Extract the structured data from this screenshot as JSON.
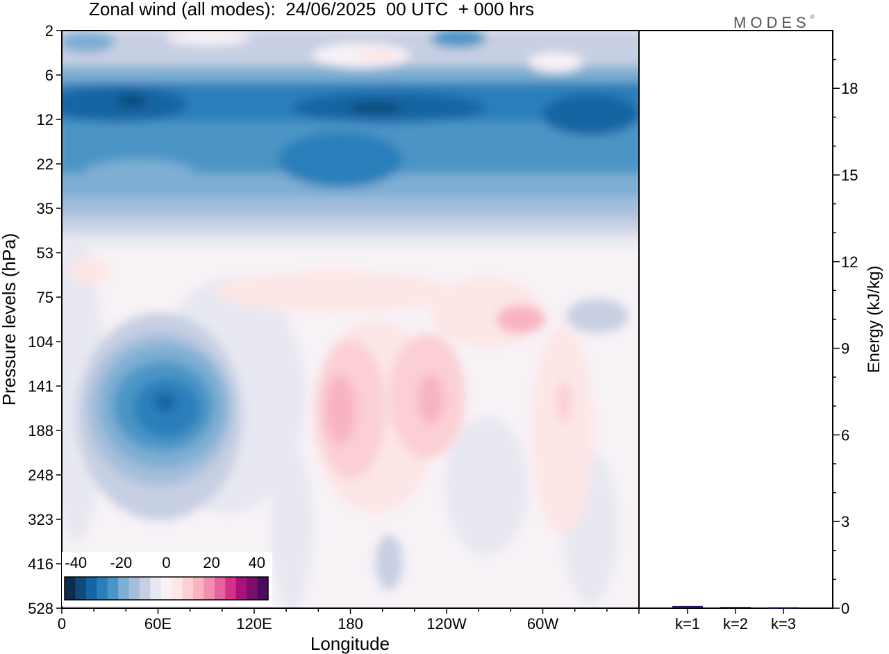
{
  "header": {
    "title": "Zonal wind (all modes):  24/06/2025  00 UTC  + 000 hrs",
    "brand": "MODES",
    "brand_mark": "®"
  },
  "chart_data": [
    {
      "type": "heatmap",
      "title": "Zonal wind (all modes):  24/06/2025  00 UTC  + 000 hrs",
      "xlabel": "Longitude",
      "ylabel": "Pressure levels (hPa)",
      "x_ticks": [
        "0",
        "60E",
        "120E",
        "180",
        "120W",
        "60W"
      ],
      "y_ticks": [
        "2",
        "6",
        "12",
        "22",
        "35",
        "53",
        "75",
        "104",
        "141",
        "188",
        "248",
        "323",
        "416",
        "528"
      ],
      "colorbar": {
        "ticks": [
          "-40",
          "-20",
          "0",
          "20",
          "40"
        ],
        "range": [
          -45,
          45
        ],
        "step": 5,
        "colors": [
          "#0d2d4f",
          "#104a78",
          "#1565a3",
          "#2a7fba",
          "#4b95c6",
          "#7eaed3",
          "#a4bedb",
          "#c7cfe3",
          "#e7e8f1",
          "#f7f2f6",
          "#fde6e6",
          "#fbcfd3",
          "#f8b3c0",
          "#f28fb0",
          "#e8629e",
          "#d43188",
          "#a8127a",
          "#7b0f6d",
          "#4a0b5c"
        ]
      },
      "description_of_field": [
        {
          "region": "stratosphere 6-35 hPa",
          "value": -30,
          "note": "strong easterlies across all longitudes"
        },
        {
          "region": "60E 141-188 hPa",
          "value": -32,
          "note": "easterly jet core"
        },
        {
          "region": "170E-130W 141-188 hPa",
          "value": 22,
          "note": "westerly maxima"
        },
        {
          "region": "80W 90 hPa",
          "value": 18,
          "note": "westerly patch"
        }
      ]
    },
    {
      "type": "bar",
      "categories": [
        "k=1",
        "k=2",
        "k=3"
      ],
      "values": [
        0.05,
        0.02,
        0.01
      ],
      "ylabel": "Energy (kJ/kg)",
      "ylim": [
        0,
        20
      ],
      "y_ticks": [
        "0",
        "3",
        "6",
        "9",
        "12",
        "15",
        "18"
      ]
    }
  ]
}
